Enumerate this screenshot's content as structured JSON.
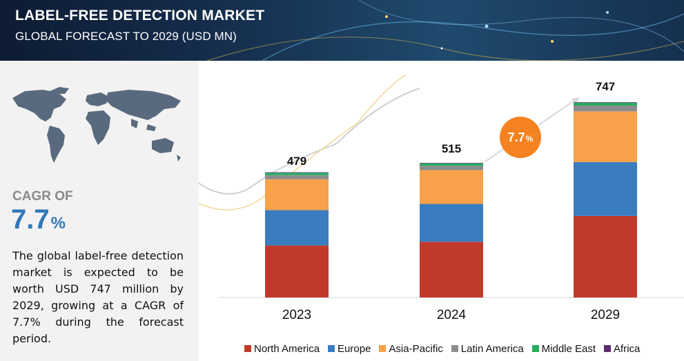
{
  "header": {
    "title": "LABEL-FREE DETECTION MARKET",
    "subtitle": "GLOBAL FORECAST TO 2029 (USD MN)"
  },
  "left_panel": {
    "cagr_label": "CAGR OF",
    "cagr_value": "7.7",
    "cagr_unit": "%",
    "description": "The global label-free detection market is expected to be worth USD 747 million by 2029, growing at a CAGR of 7.7% during the forecast period."
  },
  "cagr_bubble": {
    "value": "7.7",
    "unit": "%"
  },
  "chart_data": {
    "type": "bar",
    "stacked": true,
    "categories": [
      "2023",
      "2024",
      "2029"
    ],
    "totals": [
      479,
      515,
      747
    ],
    "series": [
      {
        "name": "North America",
        "color": "#c0392b",
        "values": [
          199,
          213,
          312
        ]
      },
      {
        "name": "Europe",
        "color": "#3a7cc0",
        "values": [
          135,
          145,
          206
        ]
      },
      {
        "name": "Asia-Pacific",
        "color": "#f7a24a",
        "values": [
          118,
          129,
          194
        ]
      },
      {
        "name": "Latin America",
        "color": "#8c8c8c",
        "values": [
          16,
          17,
          22
        ]
      },
      {
        "name": "Middle East",
        "color": "#27ae60",
        "values": [
          9,
          9,
          11
        ]
      },
      {
        "name": "Africa",
        "color": "#5b2c6f",
        "values": [
          2,
          2,
          2
        ]
      }
    ],
    "ylim": [
      0,
      800
    ],
    "grid": false,
    "legend_position": "bottom"
  }
}
